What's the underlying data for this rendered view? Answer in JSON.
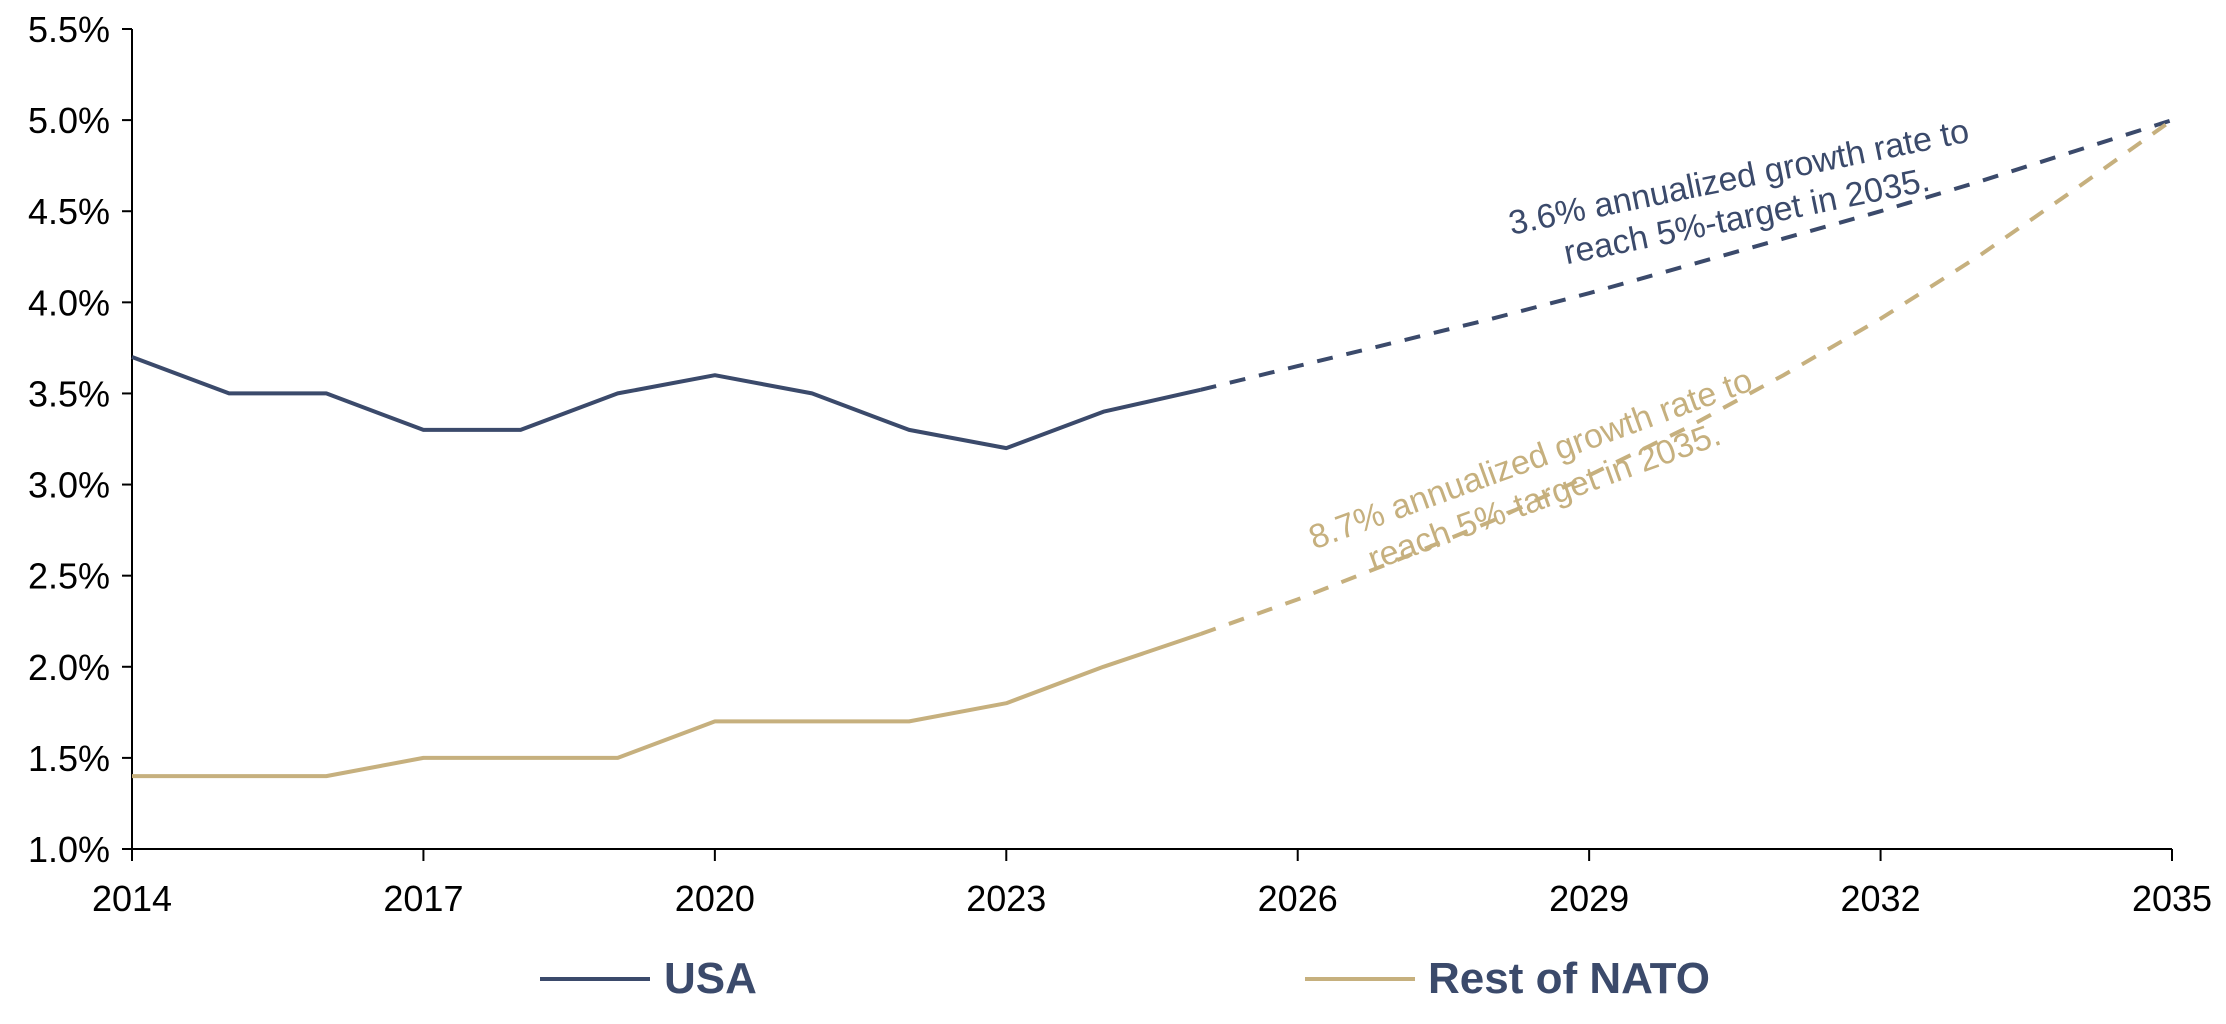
{
  "chart_data": {
    "type": "line",
    "title": "",
    "xlabel": "",
    "ylabel": "",
    "xlim": [
      2014,
      2035
    ],
    "ylim": [
      1.0,
      5.5
    ],
    "x_ticks": [
      2014,
      2017,
      2020,
      2023,
      2026,
      2029,
      2032,
      2035
    ],
    "x_tick_labels": [
      "2014",
      "2017",
      "2020",
      "2023",
      "2026",
      "2029",
      "2032",
      "2035"
    ],
    "y_ticks": [
      1.0,
      1.5,
      2.0,
      2.5,
      3.0,
      3.5,
      4.0,
      4.5,
      5.0,
      5.5
    ],
    "y_tick_labels": [
      "1.0%",
      "1.5%",
      "2.0%",
      "2.5%",
      "3.0%",
      "3.5%",
      "4.0%",
      "4.5%",
      "5.0%",
      "5.5%"
    ],
    "grid": false,
    "legend_position": "bottom",
    "series": [
      {
        "name": "USA",
        "color": "#3b4a6b",
        "actual": {
          "x": [
            2014,
            2015,
            2016,
            2017,
            2018,
            2019,
            2020,
            2021,
            2022,
            2023,
            2024,
            2025
          ],
          "y": [
            3.7,
            3.5,
            3.5,
            3.3,
            3.3,
            3.5,
            3.6,
            3.5,
            3.3,
            3.2,
            3.4,
            3.52
          ]
        },
        "projection": {
          "x": [
            2025,
            2026,
            2027,
            2028,
            2029,
            2030,
            2031,
            2032,
            2033,
            2034,
            2035
          ],
          "y": [
            3.52,
            3.65,
            3.78,
            3.91,
            4.05,
            4.2,
            4.35,
            4.5,
            4.66,
            4.83,
            5.0
          ]
        }
      },
      {
        "name": "Rest of NATO",
        "color": "#c6b07e",
        "actual": {
          "x": [
            2014,
            2015,
            2016,
            2017,
            2018,
            2019,
            2020,
            2021,
            2022,
            2023,
            2024,
            2025
          ],
          "y": [
            1.4,
            1.4,
            1.4,
            1.5,
            1.5,
            1.5,
            1.7,
            1.7,
            1.7,
            1.8,
            2.0,
            2.18
          ]
        },
        "projection": {
          "x": [
            2025,
            2026,
            2027,
            2028,
            2029,
            2030,
            2031,
            2032,
            2033,
            2034,
            2035
          ],
          "y": [
            2.18,
            2.37,
            2.58,
            2.8,
            3.05,
            3.31,
            3.6,
            3.91,
            4.25,
            4.62,
            5.0
          ]
        }
      }
    ],
    "annotations": [
      {
        "series": "USA",
        "lines": [
          "3.6% annualized growth rate to",
          "reach 5%-target in 2035."
        ],
        "color": "#3b4a6b"
      },
      {
        "series": "Rest of NATO",
        "lines": [
          "8.7% annualized growth rate to",
          "reach 5%-target in 2035."
        ],
        "color": "#c6b07e"
      }
    ]
  }
}
